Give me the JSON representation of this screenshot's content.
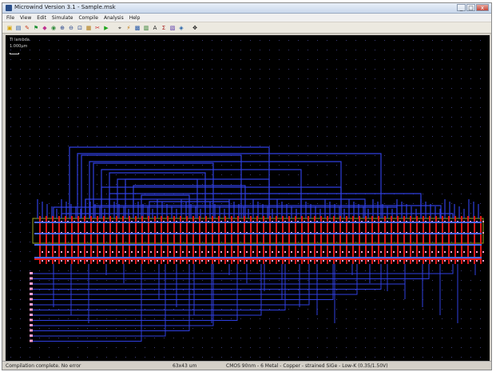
{
  "window": {
    "title": "Microwind Version 3.1 - Sample.msk"
  },
  "titlebar_buttons": {
    "minimize": "_",
    "maximize": "□",
    "close": "x"
  },
  "menu": [
    "File",
    "View",
    "Edit",
    "Simulate",
    "Compile",
    "Analysis",
    "Help"
  ],
  "toolbar": [
    {
      "icon": "folder-icon",
      "glyph": "▣",
      "color": "#d6a400"
    },
    {
      "icon": "save-icon",
      "glyph": "▤",
      "color": "#2457a8"
    },
    {
      "icon": "pencil-icon",
      "glyph": "✎",
      "color": "#c83a1e"
    },
    {
      "icon": "flag-icon",
      "glyph": "⚑",
      "color": "#178f2f"
    },
    {
      "icon": "palette-icon",
      "glyph": "◆",
      "color": "#c03090"
    },
    {
      "icon": "bucket-icon",
      "glyph": "◉",
      "color": "#2f8a3a"
    },
    {
      "icon": "zoom-in-icon",
      "glyph": "⊕",
      "color": "#1f3e8a"
    },
    {
      "icon": "zoom-out-icon",
      "glyph": "⊖",
      "color": "#1f3e8a"
    },
    {
      "icon": "zoom-fit-icon",
      "glyph": "⊡",
      "color": "#1f3e8a"
    },
    {
      "icon": "layout-icon",
      "glyph": "▦",
      "color": "#b07a10"
    },
    {
      "icon": "scissors-icon",
      "glyph": "✂",
      "color": "#cc2222"
    },
    {
      "icon": "run-icon",
      "glyph": "▶",
      "color": "#1aa51a"
    },
    {
      "icon": "separator",
      "glyph": "",
      "color": ""
    },
    {
      "icon": "crosshair-icon",
      "glyph": "⌖",
      "color": "#333333"
    },
    {
      "icon": "mos-icon",
      "glyph": "⚡",
      "color": "#c07000"
    },
    {
      "icon": "cell-icon",
      "glyph": "▩",
      "color": "#2457a8"
    },
    {
      "icon": "measure-icon",
      "glyph": "▥",
      "color": "#227722"
    },
    {
      "icon": "text-icon",
      "glyph": "A",
      "color": "#222222"
    },
    {
      "icon": "cross-section-icon",
      "glyph": "Σ",
      "color": "#aa2222"
    },
    {
      "icon": "chip-icon",
      "glyph": "▧",
      "color": "#5533aa"
    },
    {
      "icon": "layer-icon",
      "glyph": "◈",
      "color": "#1f5fa8"
    },
    {
      "icon": "separator",
      "glyph": "",
      "color": ""
    },
    {
      "icon": "navigate-arrows-icon",
      "glyph": "✥",
      "color": "#111111"
    }
  ],
  "canvas": {
    "scale_text": "TI lambda",
    "scale_unit": "1.000μm"
  },
  "status": {
    "left": "Compilation complete. No error",
    "mid": "63x43 um",
    "right": "CMOS 90nm - 6 Metal - Copper - strained SiGe - Low-K (0.35/1.50V)"
  },
  "colors": {
    "canvas_bg": "#000000",
    "grid_dot": "#3a3a7a",
    "metal1": "#2f3fe0",
    "metal2": "#4a68ff",
    "poly": "#e01818",
    "contact": "#ff9fd2",
    "active_box": "#9aa820"
  }
}
